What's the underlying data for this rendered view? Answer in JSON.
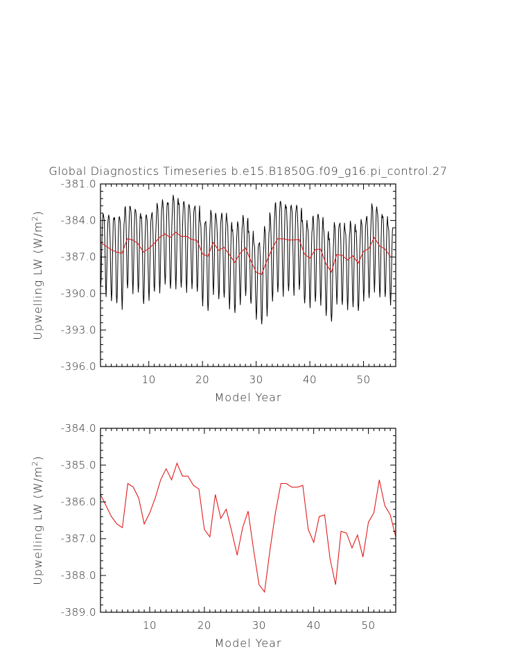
{
  "title": "Global Diagnostics Timeseries b.e15.B1850G.f09_g16.pi_control.27",
  "colors": {
    "monthly": "#000000",
    "annual": "#e01b1b",
    "axes": "#000000"
  },
  "chart_data": [
    {
      "type": "line",
      "xlabel": "Model Year",
      "ylabel_main": "Upwelling LW (W/m",
      "ylabel_sup": "2",
      "ylabel_tail": ")",
      "xlim": [
        1,
        56
      ],
      "ylim": [
        -396.0,
        -381.0
      ],
      "xticks": [
        10,
        20,
        30,
        40,
        50
      ],
      "yticks": [
        "-381.0",
        "-384.0",
        "-387.0",
        "-390.0",
        "-393.0",
        "-396.0"
      ],
      "grid": false,
      "series": [
        {
          "kind": "monthly",
          "annual_mean": [
            -385.8,
            -386.1,
            -386.4,
            -386.6,
            -386.7,
            -385.5,
            -385.6,
            -385.9,
            -386.6,
            -386.3,
            -385.9,
            -385.4,
            -385.1,
            -385.4,
            -384.95,
            -385.3,
            -385.3,
            -385.55,
            -385.65,
            -386.75,
            -386.95,
            -385.8,
            -386.45,
            -386.2,
            -386.8,
            -387.45,
            -386.7,
            -386.25,
            -387.3,
            -388.25,
            -388.45,
            -387.3,
            -386.3,
            -385.5,
            -385.5,
            -385.6,
            -385.6,
            -385.55,
            -386.75,
            -387.1,
            -386.4,
            -386.35,
            -387.55,
            -388.25,
            -386.8,
            -386.85,
            -387.25,
            -386.9,
            -387.5,
            -386.55,
            -386.3,
            -385.4,
            -386.1,
            -386.35,
            -386.95
          ],
          "amplitude": [
            5.5,
            6.0,
            6.3,
            6.5,
            6.8,
            6.2,
            6.4,
            6.0,
            6.6,
            6.3,
            6.0,
            6.6,
            6.2,
            6.5,
            6.9,
            6.4,
            6.7,
            6.1,
            6.5,
            6.3,
            6.8,
            6.2,
            6.0,
            6.4,
            6.6,
            6.3,
            6.1,
            5.9,
            5.5,
            5.7,
            6.2,
            6.6,
            6.5,
            6.8,
            7.0,
            6.4,
            6.6,
            6.2,
            6.3,
            6.0,
            6.5,
            6.7,
            6.4,
            6.3,
            6.0,
            6.2,
            5.9,
            6.3,
            6.1,
            6.0,
            6.2,
            6.5,
            6.3,
            6.1,
            5.9
          ]
        },
        {
          "kind": "annual",
          "x": [
            1,
            2,
            3,
            4,
            5,
            6,
            7,
            8,
            9,
            10,
            11,
            12,
            13,
            14,
            15,
            16,
            17,
            18,
            19,
            20,
            21,
            22,
            23,
            24,
            25,
            26,
            27,
            28,
            29,
            30,
            31,
            32,
            33,
            34,
            35,
            36,
            37,
            38,
            39,
            40,
            41,
            42,
            43,
            44,
            45,
            46,
            47,
            48,
            49,
            50,
            51,
            52,
            53,
            54,
            55
          ],
          "y": [
            -385.8,
            -386.1,
            -386.4,
            -386.6,
            -386.7,
            -385.5,
            -385.6,
            -385.9,
            -386.6,
            -386.3,
            -385.9,
            -385.4,
            -385.1,
            -385.4,
            -384.95,
            -385.3,
            -385.3,
            -385.55,
            -385.65,
            -386.75,
            -386.95,
            -385.8,
            -386.45,
            -386.2,
            -386.8,
            -387.45,
            -386.7,
            -386.25,
            -387.3,
            -388.25,
            -388.45,
            -387.3,
            -386.3,
            -385.5,
            -385.5,
            -385.6,
            -385.6,
            -385.55,
            -386.75,
            -387.1,
            -386.4,
            -386.35,
            -387.55,
            -388.25,
            -386.8,
            -386.85,
            -387.25,
            -386.9,
            -387.5,
            -386.55,
            -386.3,
            -385.4,
            -386.1,
            -386.35,
            -386.95
          ]
        }
      ]
    },
    {
      "type": "line",
      "xlabel": "Model Year",
      "ylabel_main": "Upwelling LW (W/m",
      "ylabel_sup": "2",
      "ylabel_tail": ")",
      "xlim": [
        1,
        55
      ],
      "ylim": [
        -389.0,
        -384.0
      ],
      "xticks": [
        10,
        20,
        30,
        40,
        50
      ],
      "yticks": [
        "-384.0",
        "-385.0",
        "-386.0",
        "-387.0",
        "-388.0",
        "-389.0"
      ],
      "grid": false,
      "series": [
        {
          "kind": "annual",
          "x": [
            1,
            2,
            3,
            4,
            5,
            6,
            7,
            8,
            9,
            10,
            11,
            12,
            13,
            14,
            15,
            16,
            17,
            18,
            19,
            20,
            21,
            22,
            23,
            24,
            25,
            26,
            27,
            28,
            29,
            30,
            31,
            32,
            33,
            34,
            35,
            36,
            37,
            38,
            39,
            40,
            41,
            42,
            43,
            44,
            45,
            46,
            47,
            48,
            49,
            50,
            51,
            52,
            53,
            54,
            55
          ],
          "y": [
            -385.8,
            -386.1,
            -386.4,
            -386.6,
            -386.7,
            -385.5,
            -385.6,
            -385.9,
            -386.6,
            -386.3,
            -385.9,
            -385.4,
            -385.1,
            -385.4,
            -384.95,
            -385.3,
            -385.3,
            -385.55,
            -385.65,
            -386.75,
            -386.95,
            -385.8,
            -386.45,
            -386.2,
            -386.8,
            -387.45,
            -386.7,
            -386.25,
            -387.3,
            -388.25,
            -388.45,
            -387.3,
            -386.3,
            -385.5,
            -385.5,
            -385.6,
            -385.6,
            -385.55,
            -386.75,
            -387.1,
            -386.4,
            -386.35,
            -387.55,
            -388.25,
            -386.8,
            -386.85,
            -387.25,
            -386.9,
            -387.5,
            -386.55,
            -386.3,
            -385.4,
            -386.1,
            -386.35,
            -386.95
          ]
        }
      ]
    }
  ]
}
